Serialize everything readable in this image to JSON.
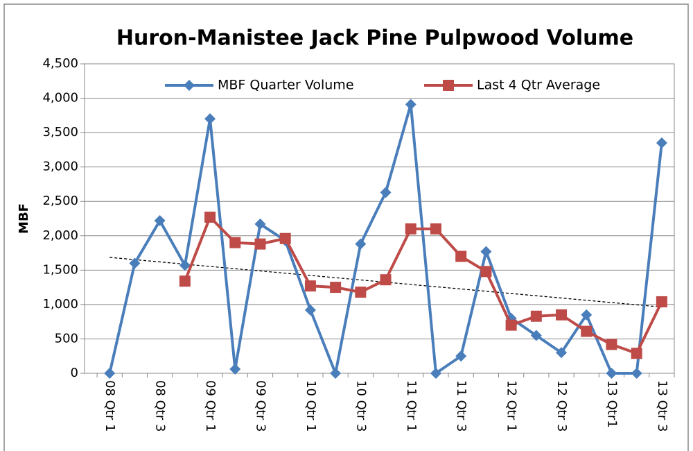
{
  "chart_data": {
    "type": "line",
    "title": "Huron-Manistee Jack Pine Pulpwood Volume",
    "y_label": "MBF",
    "categories": [
      "08 Qtr 1",
      null,
      "08 Qtr 3",
      null,
      "09 Qtr 1",
      null,
      "09 Qtr 3",
      null,
      "10 Qtr 1",
      null,
      "10 Qtr 3",
      null,
      "11 Qtr 1",
      null,
      "11 Qtr 3",
      null,
      "12 Qtr 1",
      null,
      "12 Qtr 3",
      null,
      "13 Qtr1",
      null,
      "13 Qtr 3"
    ],
    "series": [
      {
        "name": "MBF Quarter Volume",
        "color": "#4a7ebb",
        "marker": "diamond",
        "values": [
          0,
          1600,
          2220,
          1570,
          3700,
          60,
          2170,
          1930,
          920,
          0,
          1880,
          2630,
          3910,
          0,
          250,
          1770,
          800,
          550,
          300,
          850,
          0,
          0,
          3350
        ]
      },
      {
        "name": "Last 4 Qtr Average",
        "color": "#be4b48",
        "marker": "square",
        "values": [
          null,
          null,
          null,
          1340,
          2270,
          1900,
          1880,
          1960,
          1270,
          1250,
          1180,
          1360,
          2100,
          2100,
          1700,
          1480,
          700,
          830,
          850,
          610,
          420,
          290,
          1040
        ]
      }
    ],
    "trendline": {
      "series": 0,
      "color": "#000000",
      "dashed": true
    },
    "ylim": [
      0,
      4500
    ],
    "yticks": [
      0,
      500,
      {
        "value": 1000,
        "label": "1,000"
      },
      {
        "value": 1500,
        "label": "1,500"
      },
      {
        "value": 2000,
        "label": "2,000"
      },
      {
        "value": 2500,
        "label": "2,500"
      },
      {
        "value": 3000,
        "label": "3,000"
      },
      {
        "value": 3500,
        "label": "3,500"
      },
      {
        "value": 4000,
        "label": "4,000"
      },
      {
        "value": 4500,
        "label": "4,500"
      }
    ],
    "grid": true,
    "legend": "top"
  }
}
